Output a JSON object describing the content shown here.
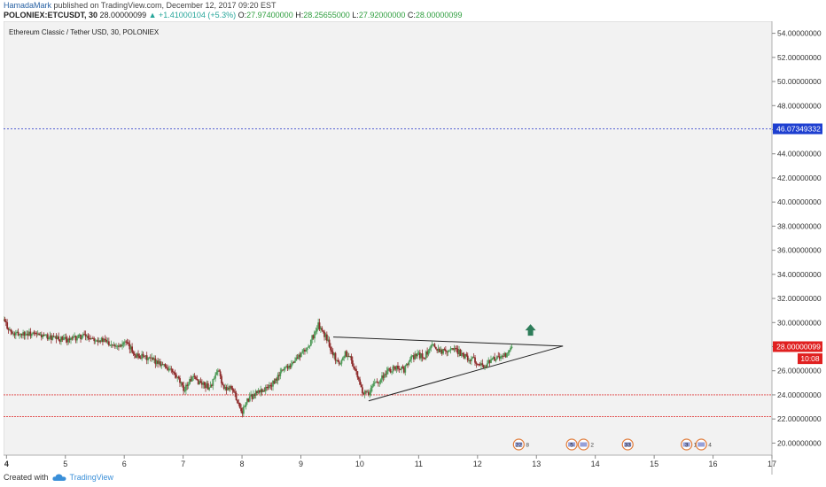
{
  "header": {
    "author": "HamadaMark",
    "published": "published on TradingView.com, December 12, 2017 09:20 EST",
    "symbol": "POLONIEX:ETCUSDT, 30",
    "price": "28.00000099",
    "change": "▲ +1.41000104 (+5.3%)",
    "o_label": "O:",
    "o_value": "27.97400000",
    "h_label": "H:",
    "h_value": "28.25655000",
    "l_label": "L:",
    "l_value": "27.92000000",
    "c_label": "C:",
    "c_value": "28.00000099"
  },
  "footer": {
    "created": "Created with",
    "brand": "TradingView",
    "logo_icon": "tradingview-cloud-icon"
  },
  "colors": {
    "up": "#26a69a",
    "down": "#ef5350",
    "candle_up": "#4e9a58",
    "candle_down": "#8e2a2a",
    "blue_line": "#2232c9",
    "red_line": "#e04040",
    "price_tag": "#e02020",
    "blue_tag": "#1e3fd0",
    "arrow": "#2e7d5a"
  },
  "chart_data": {
    "type": "candlestick",
    "title": "Ethereum Classic / Tether USD, 30, POLONIEX",
    "x_ticks": [
      "4",
      "5",
      "6",
      "7",
      "8",
      "9",
      "10",
      "11",
      "12",
      "13",
      "14",
      "15",
      "16",
      "17"
    ],
    "x_range": [
      3.95,
      17.0
    ],
    "ylim": [
      19.0,
      55.0
    ],
    "y_ticks": [
      "54.00000000",
      "52.00000000",
      "50.00000000",
      "48.00000000",
      "46.00000000",
      "44.00000000",
      "42.00000000",
      "40.00000000",
      "38.00000000",
      "36.00000000",
      "34.00000000",
      "32.00000000",
      "30.00000000",
      "28.00000000",
      "26.00000000",
      "24.00000000",
      "22.00000000",
      "20.00000000"
    ],
    "grid": false,
    "close_path": [
      [
        3.95,
        30.2
      ],
      [
        4.1,
        29.0
      ],
      [
        4.3,
        29.1
      ],
      [
        4.5,
        29.0
      ],
      [
        4.7,
        28.8
      ],
      [
        4.9,
        28.6
      ],
      [
        5.1,
        28.6
      ],
      [
        5.3,
        28.9
      ],
      [
        5.5,
        28.7
      ],
      [
        5.7,
        28.4
      ],
      [
        5.9,
        28.1
      ],
      [
        6.0,
        28.4
      ],
      [
        6.2,
        27.3
      ],
      [
        6.4,
        27.0
      ],
      [
        6.6,
        26.7
      ],
      [
        6.8,
        26.0
      ],
      [
        6.95,
        25.0
      ],
      [
        7.0,
        24.4
      ],
      [
        7.15,
        25.4
      ],
      [
        7.3,
        25.0
      ],
      [
        7.45,
        24.6
      ],
      [
        7.6,
        26.0
      ],
      [
        7.7,
        24.4
      ],
      [
        7.8,
        24.8
      ],
      [
        7.9,
        23.8
      ],
      [
        8.0,
        22.6
      ],
      [
        8.1,
        23.6
      ],
      [
        8.25,
        24.2
      ],
      [
        8.4,
        24.5
      ],
      [
        8.55,
        25.0
      ],
      [
        8.7,
        26.2
      ],
      [
        8.85,
        26.6
      ],
      [
        9.0,
        27.4
      ],
      [
        9.1,
        27.8
      ],
      [
        9.2,
        28.8
      ],
      [
        9.3,
        29.8
      ],
      [
        9.35,
        29.3
      ],
      [
        9.45,
        28.6
      ],
      [
        9.55,
        27.4
      ],
      [
        9.65,
        26.5
      ],
      [
        9.75,
        27.5
      ],
      [
        9.85,
        27.0
      ],
      [
        9.95,
        25.6
      ],
      [
        10.05,
        24.2
      ],
      [
        10.15,
        24.0
      ],
      [
        10.25,
        25.0
      ],
      [
        10.35,
        25.3
      ],
      [
        10.45,
        25.9
      ],
      [
        10.55,
        26.1
      ],
      [
        10.65,
        26.4
      ],
      [
        10.75,
        26.0
      ],
      [
        10.85,
        26.9
      ],
      [
        10.95,
        27.3
      ],
      [
        11.1,
        27.2
      ],
      [
        11.25,
        28.1
      ],
      [
        11.4,
        27.6
      ],
      [
        11.55,
        27.9
      ],
      [
        11.7,
        27.5
      ],
      [
        11.85,
        27.0
      ],
      [
        12.0,
        26.8
      ],
      [
        12.1,
        26.3
      ],
      [
        12.2,
        26.8
      ],
      [
        12.35,
        27.1
      ],
      [
        12.5,
        27.3
      ],
      [
        12.6,
        28.0
      ]
    ],
    "drawings": [
      {
        "type": "hline",
        "y": 46.07349332
      },
      {
        "type": "hline",
        "y": 24.0
      },
      {
        "type": "hline",
        "y": 22.2
      },
      {
        "type": "segment",
        "from": [
          9.55,
          28.8
        ],
        "to": [
          13.45,
          28.05
        ]
      },
      {
        "type": "segment",
        "from": [
          10.15,
          23.5
        ],
        "to": [
          13.45,
          28.05
        ]
      },
      {
        "type": "arrow-up",
        "at": [
          12.9,
          29.2
        ]
      }
    ],
    "price_labels": [
      {
        "value": "46.07349332",
        "y": 46.07349332,
        "kind": "blue"
      },
      {
        "value": "28.00000099",
        "y": 28.0,
        "kind": "red"
      },
      {
        "value": "10:08",
        "y": 27.0,
        "kind": "red"
      }
    ],
    "events": [
      {
        "x": 12.7,
        "label": "22",
        "count": "8"
      },
      {
        "x": 13.6,
        "label": "5",
        "count": "12"
      },
      {
        "x": 13.8,
        "label": "",
        "count": "2"
      },
      {
        "x": 14.55,
        "label": "33",
        "count": ""
      },
      {
        "x": 15.55,
        "label": "3",
        "count": "1"
      },
      {
        "x": 15.8,
        "label": "",
        "count": "4"
      }
    ]
  }
}
